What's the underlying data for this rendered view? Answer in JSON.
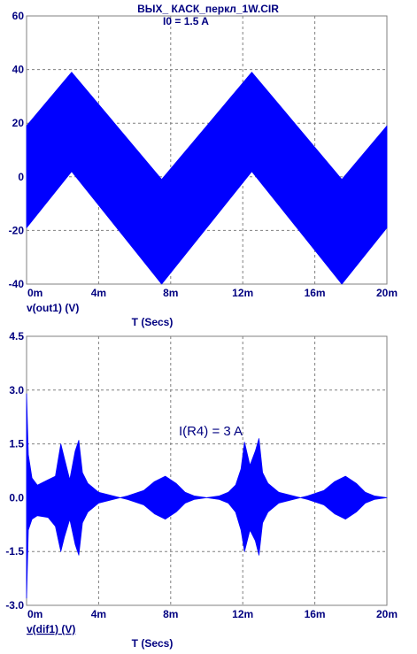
{
  "window": {
    "title": "ВЫХ_ КАСК_перкл_1W.CIR"
  },
  "colors": {
    "trace": "#0000ff",
    "text": "#000080",
    "grid": "#808080",
    "frame": "#808080"
  },
  "chart_data": [
    {
      "type": "area",
      "top_annotation": "I0 = 1.5 A",
      "ylabel": "v(out1) (V)",
      "xlabel": "T (Secs)",
      "xlim": [
        0,
        20
      ],
      "ylim": [
        -40,
        60
      ],
      "x_ticks": [
        "0m",
        "4m",
        "8m",
        "12m",
        "16m",
        "20m"
      ],
      "y_ticks": [
        "60",
        "40",
        "20",
        "0",
        "-20",
        "-40"
      ],
      "grid": true,
      "series": [
        {
          "x": [
            0,
            2.5,
            5,
            7.5,
            10,
            12.5,
            15,
            17.5,
            20
          ],
          "upper": [
            19,
            39,
            19,
            -1,
            19,
            39,
            19,
            -1,
            19
          ],
          "lower": [
            -19,
            2,
            -19,
            -40,
            -19,
            2,
            -19,
            -40,
            -19
          ]
        }
      ]
    },
    {
      "type": "area",
      "annotation": "I(R4) = 3 A",
      "ylabel": "v(dif1) (V)",
      "xlabel": "T (Secs)",
      "xlim": [
        0,
        20
      ],
      "ylim": [
        -3,
        4.5
      ],
      "x_ticks": [
        "0m",
        "4m",
        "8m",
        "12m",
        "16m",
        "20m"
      ],
      "y_ticks": [
        "4.5",
        "3.0",
        "1.5",
        "0.0",
        "-1.5",
        "-3.0"
      ],
      "grid": true,
      "series": [
        {
          "x": [
            0,
            0.1,
            0.3,
            0.6,
            1.2,
            1.6,
            1.9,
            2.1,
            2.4,
            2.7,
            2.9,
            3.1,
            3.4,
            4.0,
            4.8,
            5.2,
            5.6,
            6.5,
            7.1,
            7.7,
            8.3,
            8.8,
            9.3,
            10.0,
            10.7,
            11.2,
            11.6,
            11.9,
            12.1,
            12.4,
            12.7,
            12.9,
            13.1,
            13.4,
            14.0,
            14.8,
            15.2,
            15.6,
            16.5,
            17.1,
            17.7,
            18.3,
            18.8,
            19.3,
            20.0
          ],
          "upper": [
            2.9,
            1.2,
            0.55,
            0.35,
            0.5,
            0.6,
            1.5,
            1.1,
            0.5,
            1.3,
            1.6,
            0.7,
            0.4,
            0.15,
            0.05,
            0.0,
            0.05,
            0.2,
            0.45,
            0.6,
            0.4,
            0.15,
            0.05,
            0.0,
            0.05,
            0.15,
            0.35,
            0.8,
            1.55,
            0.9,
            1.3,
            1.65,
            0.7,
            0.4,
            0.15,
            0.05,
            0.0,
            0.05,
            0.2,
            0.45,
            0.6,
            0.4,
            0.15,
            0.05,
            0.0
          ],
          "lower": [
            -2.8,
            -0.9,
            -0.6,
            -0.5,
            -0.55,
            -0.8,
            -1.5,
            -1.1,
            -0.6,
            -1.3,
            -1.6,
            -0.7,
            -0.4,
            -0.15,
            -0.05,
            0.0,
            -0.05,
            -0.2,
            -0.45,
            -0.6,
            -0.4,
            -0.15,
            -0.05,
            0.0,
            -0.05,
            -0.15,
            -0.4,
            -0.9,
            -1.5,
            -0.9,
            -1.2,
            -1.6,
            -0.7,
            -0.4,
            -0.15,
            -0.05,
            0.0,
            -0.05,
            -0.2,
            -0.45,
            -0.6,
            -0.4,
            -0.15,
            -0.05,
            0.0
          ]
        }
      ]
    }
  ]
}
